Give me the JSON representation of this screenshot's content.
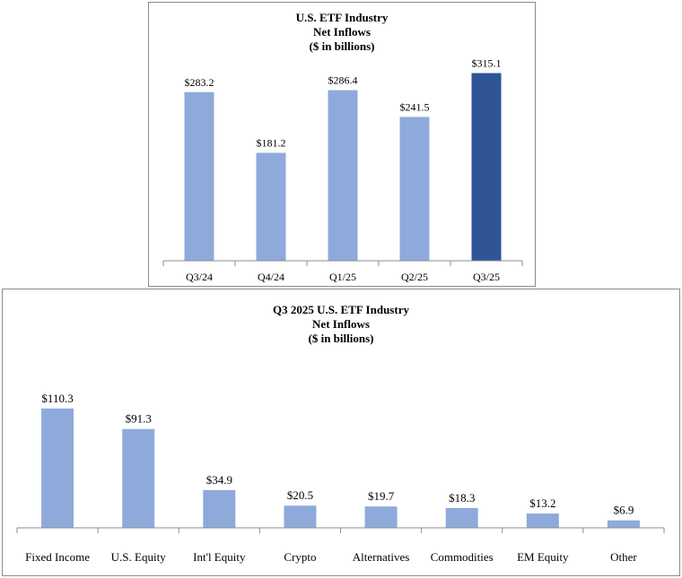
{
  "chart_data": [
    {
      "type": "bar",
      "title": [
        "U.S. ETF Industry",
        "Net Inflows",
        "($ in billions)"
      ],
      "categories": [
        "Q3/24",
        "Q4/24",
        "Q1/25",
        "Q2/25",
        "Q3/25"
      ],
      "values": [
        283.2,
        181.2,
        286.4,
        241.5,
        315.1
      ],
      "value_labels": [
        "$283.2",
        "$181.2",
        "$286.4",
        "$241.5",
        "$315.1"
      ],
      "colors": [
        "#8eaadb",
        "#8eaadb",
        "#8eaadb",
        "#8eaadb",
        "#2f5597"
      ],
      "xlabel": "",
      "ylabel": "",
      "ylim": [
        0,
        340
      ],
      "grid": false
    },
    {
      "type": "bar",
      "title": [
        "Q3 2025 U.S. ETF Industry",
        "Net Inflows",
        "($ in billions)"
      ],
      "categories": [
        "Fixed Income",
        "U.S. Equity",
        "Int'l Equity",
        "Crypto",
        "Alternatives",
        "Commodities",
        "EM Equity",
        "Other"
      ],
      "values": [
        110.3,
        91.3,
        34.9,
        20.5,
        19.7,
        18.3,
        13.2,
        6.9
      ],
      "value_labels": [
        "$110.3",
        "$91.3",
        "$34.9",
        "$20.5",
        "$19.7",
        "$18.3",
        "$13.2",
        "$6.9"
      ],
      "colors": [
        "#8eaadb",
        "#8eaadb",
        "#8eaadb",
        "#8eaadb",
        "#8eaadb",
        "#8eaadb",
        "#8eaadb",
        "#8eaadb"
      ],
      "xlabel": "",
      "ylabel": "",
      "ylim": [
        0,
        130
      ],
      "grid": false
    }
  ]
}
